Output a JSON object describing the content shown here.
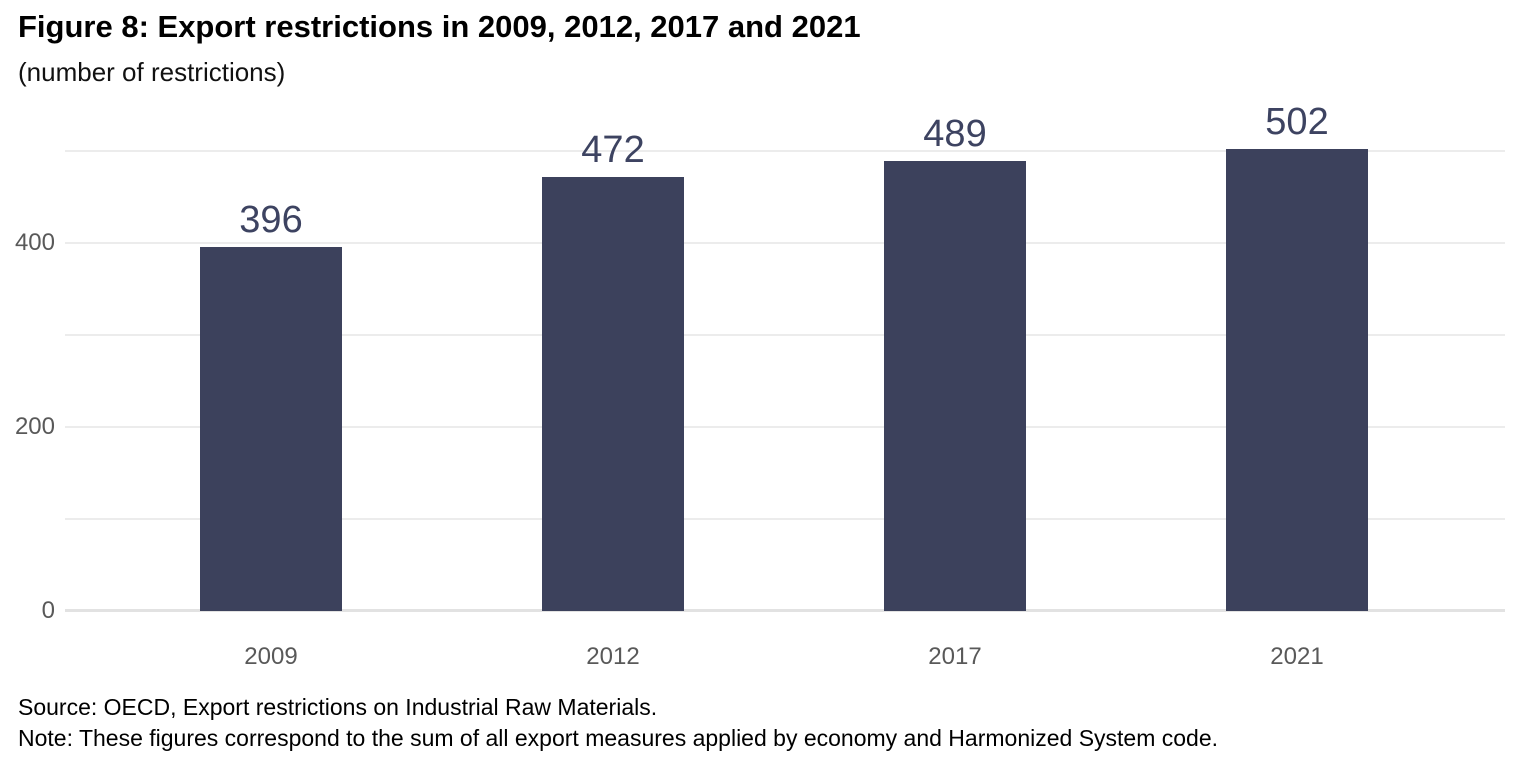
{
  "chart_data": {
    "type": "bar",
    "title": "Figure 8: Export restrictions in 2009, 2012, 2017 and 2021",
    "subtitle": "(number of restrictions)",
    "categories": [
      "2009",
      "2012",
      "2017",
      "2021"
    ],
    "values": [
      396,
      472,
      489,
      502
    ],
    "xlabel": "",
    "ylabel": "number of restrictions",
    "ylim": [
      0,
      551
    ],
    "ytick_labels": [
      0,
      200,
      400
    ],
    "gridline_values": [
      0,
      100,
      200,
      300,
      400,
      500
    ],
    "grid": true,
    "legend_position": "none",
    "value_labels_shown": true,
    "colors": {
      "bar": "#3C415C",
      "value_label": "#3D4361",
      "axis_tick_label": "#595959",
      "gridline": "#ececec",
      "baseline": "#e2e2e2",
      "title": "#000000",
      "footnote": "#000000"
    },
    "source": "Source: OECD, Export restrictions on Industrial Raw Materials.",
    "note": "Note: These figures correspond to the sum of all export measures applied by economy and Harmonized System code."
  }
}
